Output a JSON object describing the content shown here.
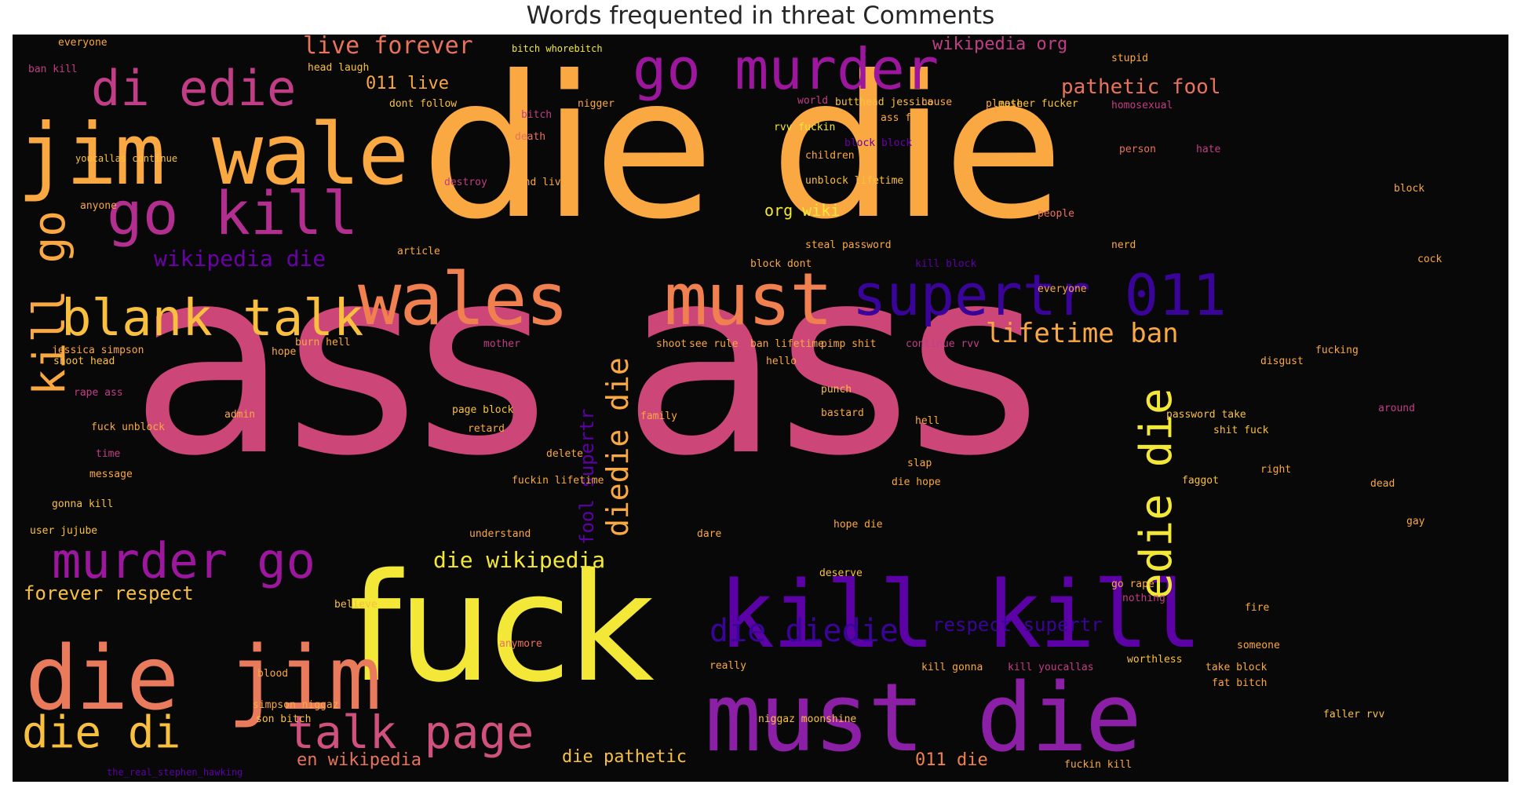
{
  "title": "Words frequented in threat Comments",
  "palette": [
    "#f9e325",
    "#f9a342",
    "#e8735a",
    "#c9417b",
    "#9c179e",
    "#6a00a8",
    "#2c0594"
  ],
  "words": {
    "ass_ass": "ass ass",
    "die_die": "die die",
    "fuck": "fuck",
    "must_die": "must die",
    "kill_kill": "kill kill",
    "jim_wale": "jim wale",
    "die_jim": "die jim",
    "wales": "wales",
    "must": "must",
    "go_murder": "go murder",
    "go_kill": "go kill",
    "blank_talk": "blank talk",
    "di_edie": "di edie",
    "supertr_011": "supertr 011",
    "murder_go": "murder go",
    "talk_page": "talk page",
    "die_di": "die di",
    "kill_go": "kill go",
    "edie_die": "edie die",
    "die_diedie": "die diedie",
    "diedie_die": "diedie die",
    "lifetime_ban": "lifetime ban",
    "live_forever": "live forever",
    "wikipedia_die": "wikipedia die",
    "die_wikipedia": "die wikipedia",
    "forever_respect": "forever respect",
    "pathetic_fool": "pathetic fool",
    "wikipedia_org": "wikipedia org",
    "respect_supertr": "respect supertr",
    "fool_supertr": "fool supertr",
    "011_live": "011 live",
    "011_die": "011 die",
    "en_wikipedia": "en wikipedia",
    "die_pathetic": "die pathetic",
    "org_wiki": "org wiki",
    "s_bitch_whores": "bitch whorebitch",
    "s_head_laugh": "head laugh",
    "s_ban_kill": "ban kill",
    "s_everyone": "everyone",
    "s_faggot": "faggot",
    "s_hate": "hate",
    "s_death": "death",
    "s_bitch": "bitch",
    "s_nigger": "nigger",
    "s_block": "block",
    "s_fucking": "fucking",
    "s_stupid": "stupid",
    "s_please": "please",
    "s_people": "people",
    "s_anyone": "anyone",
    "s_article": "article",
    "s_children": "children",
    "s_destroy": "destroy",
    "s_unblock": "unblock lifetime",
    "s_password": "steal password",
    "s_block_block": "block block",
    "s_kill_block": "kill block",
    "s_block_dont": "block dont",
    "s_hope": "hope",
    "s_fuck_unblock": "fuck unblock",
    "s_gonna_kill": "gonna kill",
    "s_user_jujube": "user jujube",
    "s_ban_lifetime": "ban lifetime",
    "s_fuckin_lifetime": "fuckin lifetime",
    "s_continue_rvv": "continue rvv",
    "s_rape_ass": "rape ass",
    "s_shoot_head": "shoot head",
    "s_jessica_simpson": "jessica simpson",
    "s_admin": "admin",
    "s_message": "message",
    "s_time": "time",
    "s_understand": "understand",
    "s_deserve": "deserve",
    "s_believe": "believe",
    "s_really": "really",
    "s_anymore": "anymore",
    "s_blood": "blood",
    "s_simpson_niggaz": "simpson niggaz",
    "s_son_bitch": "son bitch",
    "s_hackinglbs": "the_real_stephen_hawking",
    "s_niggaz_moonshine": "niggaz moonshine",
    "s_kill_gonna": "kill gonna",
    "s_kill_youcallas": "kill youcallas",
    "s_worthless": "worthless",
    "s_take_block": "take block",
    "s_fat_bitch": "fat bitch",
    "s_faller_rvv": "faller rvv",
    "s_fuckin_kill": "fuckin kill",
    "s_password_take": "password take",
    "s_shit_fuck": "shit fuck",
    "s_disgust": "disgust",
    "s_bastard": "bastard",
    "s_go_rape": "go rape",
    "s_nothing": "nothing",
    "s_someone": "someone",
    "s_fire": "fire",
    "s_around": "around",
    "s_right": "right",
    "s_dead": "dead",
    "s_mother_fucker": "mother fucker",
    "s_homosexual": "homosexual",
    "s_person": "person",
    "s_house": "house",
    "s_world": "world",
    "s_butthead": "butthead jessica",
    "s_ass_fat": "ass fat",
    "s_rvv_fuckin": "rvv fuckin",
    "s_dont_follow": "dont follow",
    "s_find_live": "find live",
    "s_burn_hell": "burn hell",
    "s_see_rule": "see rule",
    "s_pimp_shit": "pimp shit",
    "s_hello": "hello",
    "s_punch": "punch",
    "s_family": "family",
    "s_retard": "retard",
    "s_delete": "delete",
    "s_page_block": "page block",
    "s_hell": "hell",
    "s_shoot": "shoot",
    "s_mother": "mother",
    "s_youcallas": "youcallas continue",
    "s_cock": "cock",
    "s_nerd": "nerd",
    "s_gay": "gay",
    "s_hope_die": "hope die",
    "s_dare": "dare",
    "s_slap": "slap",
    "s_die_hope": "die hope"
  }
}
